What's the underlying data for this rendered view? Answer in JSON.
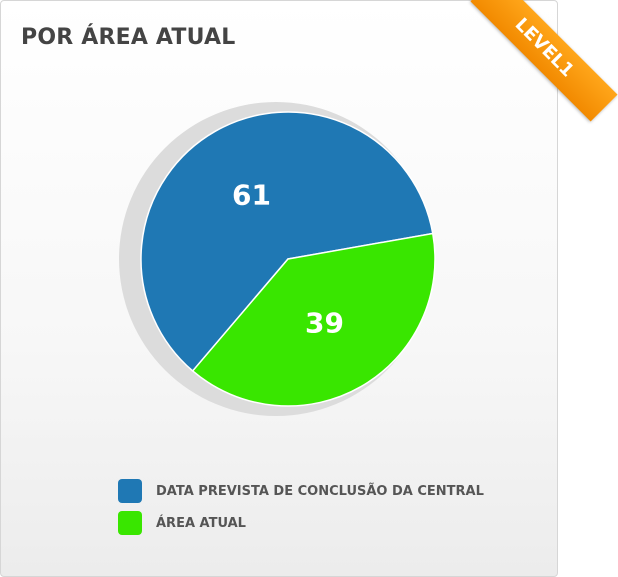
{
  "card": {
    "title": "POR ÁREA ATUAL",
    "badge": "LEVEL1"
  },
  "chart_data": {
    "type": "pie",
    "title": "POR ÁREA ATUAL",
    "labels": [
      "DATA PREVISTA DE CONCLUSÃO DA CENTRAL",
      "ÁREA ATUAL"
    ],
    "values": [
      61,
      39
    ],
    "colors": [
      "#1f78b4",
      "#39e600"
    ],
    "legend": "bottom",
    "data_labels": [
      "61",
      "39"
    ]
  }
}
